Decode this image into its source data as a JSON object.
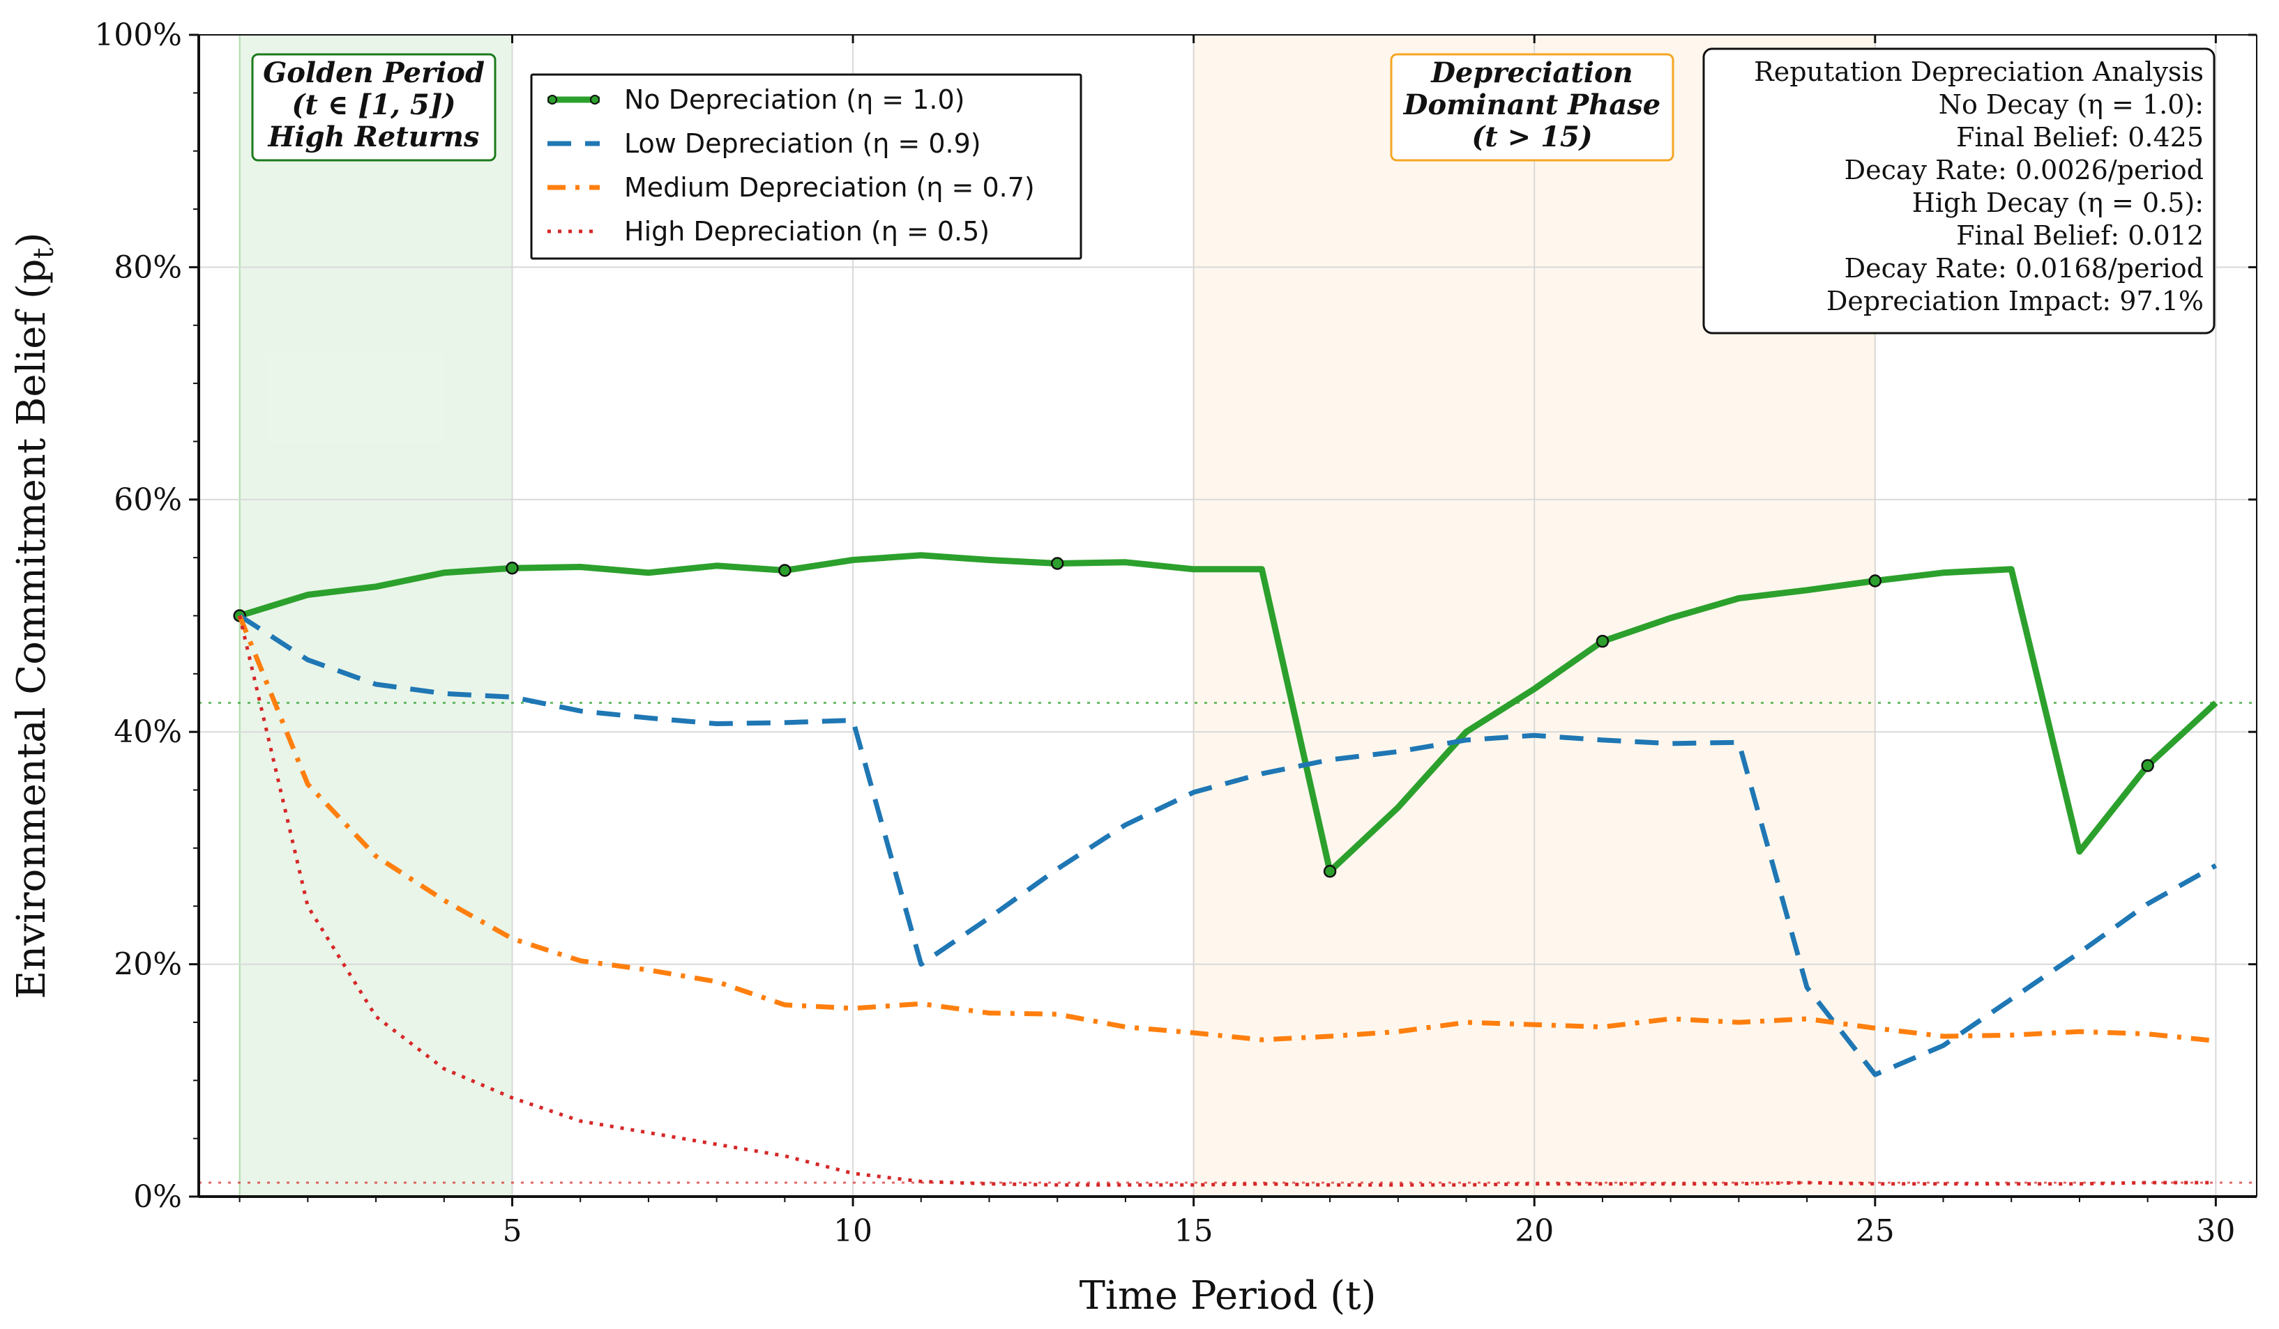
{
  "chart_data": {
    "type": "line",
    "xlabel": "Time Period (t)",
    "ylabel": "Environmental Commitment Belief (p",
    "ylabel_sub": "t",
    "ylabel_close": ")",
    "xlim": [
      0.4,
      30.6
    ],
    "ylim": [
      0,
      1
    ],
    "x_ticks": [
      5,
      10,
      15,
      20,
      25,
      30
    ],
    "x_tick_labels": [
      "5",
      "10",
      "15",
      "20",
      "25",
      "30"
    ],
    "y_ticks": [
      0,
      0.2,
      0.4,
      0.6,
      0.8,
      1.0
    ],
    "y_tick_labels": [
      "0%",
      "20%",
      "40%",
      "60%",
      "80%",
      "100%"
    ],
    "grid": true,
    "x": [
      1,
      2,
      3,
      4,
      5,
      6,
      7,
      8,
      9,
      10,
      11,
      12,
      13,
      14,
      15,
      16,
      17,
      18,
      19,
      20,
      21,
      22,
      23,
      24,
      25,
      26,
      27,
      28,
      29,
      30
    ],
    "series": [
      {
        "name": "No Depreciation (η = 1.0)",
        "color": "#2ca02c",
        "style": "solid",
        "marker_every": 4,
        "values": [
          0.5,
          0.518,
          0.525,
          0.537,
          0.541,
          0.542,
          0.537,
          0.543,
          0.539,
          0.548,
          0.552,
          0.548,
          0.545,
          0.546,
          0.54,
          0.54,
          0.28,
          0.335,
          0.4,
          0.437,
          0.478,
          0.498,
          0.515,
          0.522,
          0.53,
          0.537,
          0.54,
          0.297,
          0.371,
          0.425
        ]
      },
      {
        "name": "Low Depreciation (η = 0.9)",
        "color": "#1f77b4",
        "style": "dashed",
        "values": [
          0.5,
          0.462,
          0.441,
          0.433,
          0.43,
          0.418,
          0.412,
          0.407,
          0.408,
          0.41,
          0.2,
          0.24,
          0.282,
          0.32,
          0.348,
          0.364,
          0.376,
          0.383,
          0.393,
          0.397,
          0.393,
          0.39,
          0.391,
          0.18,
          0.105,
          0.13,
          0.17,
          0.21,
          0.252,
          0.285
        ]
      },
      {
        "name": "Medium Depreciation (η = 0.7)",
        "color": "#ff7f0e",
        "style": "dashdot",
        "values": [
          0.5,
          0.355,
          0.293,
          0.255,
          0.222,
          0.203,
          0.195,
          0.185,
          0.165,
          0.162,
          0.166,
          0.158,
          0.157,
          0.146,
          0.141,
          0.135,
          0.138,
          0.142,
          0.15,
          0.148,
          0.146,
          0.153,
          0.15,
          0.153,
          0.145,
          0.138,
          0.139,
          0.142,
          0.14,
          0.134
        ]
      },
      {
        "name": "High Depreciation (η = 0.5)",
        "color": "#d62728",
        "style": "dotted",
        "values": [
          0.5,
          0.25,
          0.155,
          0.11,
          0.085,
          0.065,
          0.055,
          0.045,
          0.035,
          0.02,
          0.013,
          0.011,
          0.01,
          0.01,
          0.01,
          0.011,
          0.01,
          0.01,
          0.01,
          0.011,
          0.011,
          0.011,
          0.011,
          0.012,
          0.011,
          0.011,
          0.011,
          0.011,
          0.012,
          0.012
        ]
      }
    ],
    "reference_lines": [
      {
        "value": 0.425,
        "color": "#2ca02c"
      },
      {
        "value": 0.012,
        "color": "#d62728"
      }
    ],
    "shaded_regions": [
      {
        "x_start": 1,
        "x_end": 5,
        "color": "#2ca02c"
      },
      {
        "x_start": 15,
        "x_end": 25,
        "color": "#ffb34d"
      }
    ],
    "annotations": {
      "golden": {
        "lines": [
          "Golden Period",
          "(t ∈ [1, 5])",
          "High Returns"
        ],
        "color": "#1a7a1a"
      },
      "depreciation": {
        "lines": [
          "Depreciation",
          "Dominant Phase",
          "(t > 15)"
        ],
        "color": "#f5a623"
      },
      "stats": {
        "lines": [
          "Reputation Depreciation Analysis",
          "No Decay (η = 1.0):",
          "Final Belief: 0.425",
          "Decay Rate: 0.0026/period",
          "High Decay (η = 0.5):",
          "Final Belief: 0.012",
          "Decay Rate: 0.0168/period",
          "Depreciation Impact: 97.1%"
        ]
      }
    },
    "legend_position": "top-left"
  }
}
